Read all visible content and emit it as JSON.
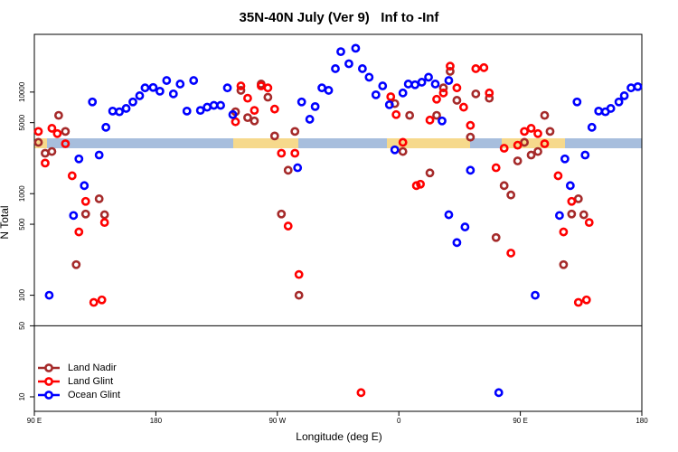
{
  "chart_data": {
    "type": "scatter",
    "title": "35N-40N July (Ver 9)   Inf to -Inf",
    "xlabel": "Longitude (deg E)",
    "ylabel": "N Total",
    "xlim": [
      90,
      540
    ],
    "xticks": [
      {
        "value": 90,
        "label": "90 E"
      },
      {
        "value": 180,
        "label": "180"
      },
      {
        "value": 270,
        "label": "90 W"
      },
      {
        "value": 360,
        "label": "0"
      },
      {
        "value": 450,
        "label": "90 E"
      },
      {
        "value": 540,
        "label": "180"
      }
    ],
    "ylim": [
      7.2,
      37000
    ],
    "yticks": [
      10,
      50,
      100,
      500,
      1000,
      5000,
      10000
    ],
    "log_y": true,
    "panel_split": 50,
    "legend": "bottom-left",
    "series": [
      {
        "name": "Land Nadir",
        "color": "#a52a2a",
        "x": [
          93,
          98,
          103,
          108,
          113,
          121,
          128,
          138,
          142,
          239,
          243,
          248,
          253,
          258,
          263,
          268,
          273,
          278,
          283,
          286,
          357,
          363,
          368,
          383,
          388,
          393,
          398,
          403,
          413,
          417,
          427,
          432,
          438,
          443,
          448,
          453,
          458,
          463,
          468,
          472,
          482,
          488,
          493,
          497
        ],
        "values": [
          3200,
          2500,
          2600,
          5900,
          4100,
          200,
          630,
          890,
          620,
          6400,
          10400,
          5600,
          5200,
          12000,
          8900,
          3700,
          630,
          1700,
          4100,
          100,
          7700,
          2600,
          5900,
          1600,
          5900,
          11000,
          16000,
          8300,
          3600,
          9600,
          8700,
          370,
          1200,
          970,
          2100,
          3200,
          2400,
          2600,
          5900,
          4100,
          200,
          630,
          890,
          620
        ]
      },
      {
        "name": "Land Glint",
        "color": "#ff0000",
        "x": [
          93,
          98,
          103,
          107,
          113,
          118,
          123,
          128,
          134,
          140,
          142,
          239,
          243,
          248,
          253,
          258,
          263,
          268,
          273,
          278,
          283,
          286,
          332,
          354,
          358,
          363,
          373,
          376,
          383,
          388,
          393,
          398,
          403,
          408,
          413,
          417,
          423,
          427,
          432,
          438,
          443,
          448,
          453,
          458,
          463,
          468,
          478,
          482,
          488,
          493,
          499,
          501
        ],
        "values": [
          4100,
          2000,
          4400,
          3900,
          3100,
          1500,
          420,
          840,
          85,
          90,
          520,
          5100,
          11500,
          8700,
          6600,
          11500,
          11000,
          6800,
          2500,
          480,
          2500,
          160,
          11,
          9000,
          6000,
          3200,
          1200,
          1240,
          5300,
          8500,
          9800,
          18000,
          11000,
          7100,
          4700,
          17000,
          17400,
          9800,
          1800,
          2800,
          260,
          3000,
          4100,
          4400,
          3900,
          3100,
          1500,
          420,
          840,
          85,
          90,
          520
        ]
      },
      {
        "name": "Ocean Glint",
        "color": "#0000ff",
        "x": [
          101,
          119,
          123,
          127,
          133,
          138,
          143,
          148,
          153,
          158,
          163,
          168,
          172,
          178,
          183,
          188,
          193,
          198,
          203,
          208,
          213,
          218,
          223,
          228,
          233,
          237,
          285,
          288,
          294,
          298,
          303,
          308,
          313,
          317,
          323,
          328,
          333,
          338,
          343,
          348,
          353,
          357,
          363,
          367,
          372,
          377,
          382,
          387,
          392,
          397,
          397,
          403,
          409,
          413,
          434,
          461,
          479,
          483,
          487,
          492,
          498,
          503,
          508,
          513,
          517,
          523,
          527,
          532,
          537
        ],
        "values": [
          100,
          610,
          2200,
          1200,
          8000,
          2400,
          4500,
          6500,
          6400,
          6900,
          8000,
          9200,
          11000,
          11100,
          10200,
          13000,
          9600,
          12000,
          6500,
          13000,
          6600,
          7100,
          7400,
          7400,
          11000,
          6000,
          1800,
          8000,
          5400,
          7200,
          11000,
          10400,
          17000,
          25000,
          19000,
          27000,
          17000,
          14000,
          9400,
          11500,
          7500,
          2700,
          9800,
          12000,
          11800,
          12500,
          14000,
          12000,
          5200,
          13000,
          620,
          330,
          470,
          1700,
          11,
          100,
          610,
          2200,
          1200,
          8000,
          2400,
          4500,
          6500,
          6400,
          6900,
          8000,
          9200,
          11000,
          11300
        ]
      }
    ]
  }
}
